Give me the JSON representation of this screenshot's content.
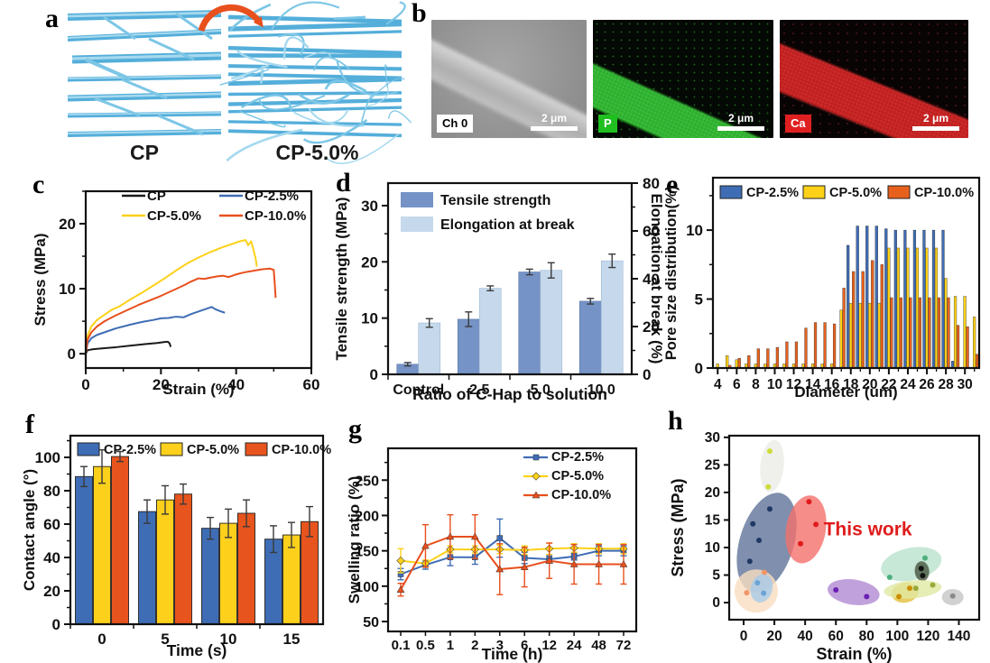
{
  "panels": {
    "a": {
      "label": "a",
      "left_caption": "CP",
      "right_caption": "CP-5.0%",
      "fiber_color": "#54aeda",
      "arrow_color": "#e8501e"
    },
    "b": {
      "label": "b",
      "images": [
        {
          "tag": "Ch 0",
          "scale_bar": "2 μm"
        },
        {
          "tag": "P",
          "scale_bar": "2 μm"
        },
        {
          "tag": "Ca",
          "scale_bar": "2 μm"
        }
      ]
    },
    "c": {
      "label": "c"
    },
    "d": {
      "label": "d"
    },
    "e": {
      "label": "e"
    },
    "f": {
      "label": "f"
    },
    "g": {
      "label": "g"
    },
    "h": {
      "label": "h"
    }
  },
  "chart_data": [
    {
      "panel": "c",
      "type": "line",
      "xlabel": "Strain (%)",
      "ylabel": "Stress (MPa)",
      "xlim": [
        0,
        60
      ],
      "ylim": [
        -2.2,
        25
      ],
      "xticks": [
        0,
        20,
        40,
        60
      ],
      "xminor": [
        10,
        30,
        50
      ],
      "yticks": [
        0,
        10,
        20
      ],
      "yminor": [
        5,
        15,
        25
      ],
      "legend_position": "top-inside-2col",
      "series": [
        {
          "name": "CP",
          "color": "#1a1a1a",
          "points": [
            [
              0,
              0
            ],
            [
              0.5,
              0.55
            ],
            [
              2,
              0.7
            ],
            [
              5,
              0.85
            ],
            [
              8,
              1.0
            ],
            [
              12,
              1.25
            ],
            [
              16,
              1.5
            ],
            [
              19,
              1.65
            ],
            [
              21,
              1.8
            ],
            [
              21.8,
              1.85
            ],
            [
              22.3,
              1.6
            ],
            [
              22.6,
              1.05
            ]
          ]
        },
        {
          "name": "CP-2.5%",
          "color": "#3f6db5",
          "points": [
            [
              0,
              0
            ],
            [
              0.5,
              1.6
            ],
            [
              1.5,
              2.4
            ],
            [
              3,
              2.9
            ],
            [
              5,
              3.3
            ],
            [
              8,
              3.9
            ],
            [
              12,
              4.5
            ],
            [
              15,
              4.9
            ],
            [
              18,
              5.2
            ],
            [
              20,
              5.45
            ],
            [
              22,
              5.5
            ],
            [
              24,
              5.7
            ],
            [
              26,
              5.6
            ],
            [
              28,
              6.1
            ],
            [
              30,
              6.5
            ],
            [
              32,
              6.9
            ],
            [
              33.5,
              7.2
            ],
            [
              34.3,
              6.9
            ],
            [
              35.5,
              6.6
            ],
            [
              37,
              6.3
            ]
          ]
        },
        {
          "name": "CP-5.0%",
          "color": "#fdd118",
          "points": [
            [
              0,
              0
            ],
            [
              0.5,
              2.8
            ],
            [
              1.5,
              4.2
            ],
            [
              3,
              5.2
            ],
            [
              5,
              6.0
            ],
            [
              7,
              6.8
            ],
            [
              9,
              7.3
            ],
            [
              12,
              8.4
            ],
            [
              15,
              9.4
            ],
            [
              18,
              10.5
            ],
            [
              21,
              11.6
            ],
            [
              24,
              12.8
            ],
            [
              27,
              13.9
            ],
            [
              30,
              14.8
            ],
            [
              33,
              15.6
            ],
            [
              36,
              16.3
            ],
            [
              39,
              16.9
            ],
            [
              41,
              17.3
            ],
            [
              42.5,
              17.5
            ],
            [
              43.2,
              16.7
            ],
            [
              44,
              17.3
            ],
            [
              44.6,
              16.0
            ],
            [
              45.2,
              14.6
            ],
            [
              45.5,
              13.4
            ]
          ]
        },
        {
          "name": "CP-10.0%",
          "color": "#e84f1d",
          "points": [
            [
              0,
              0
            ],
            [
              0.5,
              2.2
            ],
            [
              1.5,
              3.3
            ],
            [
              3,
              4.2
            ],
            [
              5,
              5.0
            ],
            [
              8,
              5.9
            ],
            [
              11,
              6.7
            ],
            [
              14,
              7.5
            ],
            [
              17,
              8.2
            ],
            [
              20,
              8.9
            ],
            [
              23,
              9.7
            ],
            [
              26,
              10.5
            ],
            [
              28,
              11.1
            ],
            [
              30,
              11.6
            ],
            [
              31.5,
              11.5
            ],
            [
              33,
              11.7
            ],
            [
              35,
              11.9
            ],
            [
              36.5,
              12.0
            ],
            [
              38,
              11.8
            ],
            [
              40,
              12.2
            ],
            [
              42,
              12.5
            ],
            [
              45,
              12.8
            ],
            [
              47,
              13.0
            ],
            [
              49,
              13.1
            ],
            [
              50,
              12.9
            ],
            [
              50.3,
              10.5
            ],
            [
              50.5,
              8.6
            ]
          ]
        }
      ]
    },
    {
      "panel": "d",
      "type": "bar-dual",
      "xlabel": "Ratio of C-Hap to solution",
      "categories": [
        "Control",
        "2.5",
        "5.0",
        "10.0"
      ],
      "left_axis": {
        "label": "Tensile strength (MPa)",
        "lim": [
          0,
          34
        ],
        "ticks": [
          0,
          10,
          20,
          30
        ],
        "minor": [
          5,
          15,
          25
        ]
      },
      "right_axis": {
        "label": "Elongation at break (%)",
        "lim": [
          0,
          80
        ],
        "ticks": [
          0,
          20,
          40,
          60,
          80
        ],
        "minor": [
          10,
          30,
          50,
          70
        ]
      },
      "series": [
        {
          "name": "Tensile strength",
          "axis": "left",
          "color": "#7593c6",
          "values": [
            1.8,
            9.8,
            18.2,
            13.0
          ],
          "errors": [
            0.3,
            1.3,
            0.5,
            0.5
          ]
        },
        {
          "name": "Elongation at break",
          "axis": "right",
          "color": "#c6d9ec",
          "values": [
            21.5,
            36,
            43.5,
            47.5
          ],
          "errors": [
            1.8,
            1.0,
            3.2,
            2.8
          ]
        }
      ]
    },
    {
      "panel": "e",
      "type": "histogram",
      "xlabel": "Diameter (um)",
      "ylabel": "Pore size distribution(%)",
      "diameter_start": 4,
      "bins": 28,
      "xtick_labels": [
        4,
        6,
        8,
        10,
        12,
        14,
        16,
        18,
        20,
        22,
        24,
        26,
        28,
        30
      ],
      "ylim": [
        0,
        13.8
      ],
      "yticks": [
        0,
        5,
        10
      ],
      "yminor": [
        2.5,
        7.5,
        12.5
      ],
      "series": [
        {
          "name": "CP-2.5%",
          "color": "#3f6db5",
          "values": [
            0,
            0,
            0,
            0,
            0,
            0,
            0,
            0,
            0,
            0,
            0,
            0,
            0,
            0,
            8.9,
            10.3,
            10.3,
            10.3,
            10.1,
            10.0,
            10.0,
            10.0,
            10.0,
            10.0,
            10.0,
            0.5,
            0,
            0
          ]
        },
        {
          "name": "CP-5.0%",
          "color": "#fdd118",
          "values": [
            0.3,
            0.9,
            0.6,
            0.3,
            0.3,
            0.3,
            0.3,
            0.3,
            0.3,
            0.3,
            0.3,
            0.3,
            0.3,
            4.2,
            4.7,
            4.7,
            4.7,
            4.7,
            8.7,
            8.7,
            8.7,
            8.7,
            8.7,
            8.7,
            6.5,
            5.2,
            5.2,
            3.7
          ]
        },
        {
          "name": "CP-10.0%",
          "color": "#e8611c",
          "values": [
            0,
            0.2,
            0.7,
            0.9,
            1.4,
            1.4,
            1.5,
            1.9,
            1.9,
            2.9,
            3.3,
            3.3,
            3.2,
            5.8,
            7.0,
            7.0,
            7.8,
            7.5,
            5.1,
            5.1,
            5.1,
            5.1,
            5.1,
            5.1,
            5.1,
            3.1,
            3.0,
            1.0
          ]
        }
      ]
    },
    {
      "panel": "f",
      "type": "grouped-bar",
      "xlabel": "Time (s)",
      "ylabel": "Contact angle (°)",
      "categories": [
        "0",
        "5",
        "10",
        "15"
      ],
      "ylim": [
        0,
        113
      ],
      "yticks": [
        0,
        20,
        40,
        60,
        80,
        100
      ],
      "yminor": [
        10,
        30,
        50,
        70,
        90,
        110
      ],
      "series": [
        {
          "name": "CP-2.5%",
          "color": "#3f6db5",
          "values": [
            88.5,
            67.5,
            57.5,
            51
          ],
          "errors": [
            6,
            7,
            6.5,
            8
          ]
        },
        {
          "name": "CP-5.0%",
          "color": "#fdd01c",
          "values": [
            94.5,
            74.5,
            60.5,
            53.5
          ],
          "errors": [
            10,
            8.5,
            8.5,
            7.5
          ]
        },
        {
          "name": "CP-10.0%",
          "color": "#e8541d",
          "values": [
            100.5,
            78,
            66.5,
            61.5
          ],
          "errors": [
            3,
            6,
            8,
            9
          ]
        }
      ]
    },
    {
      "panel": "g",
      "type": "line-cat",
      "xlabel": "Time (h)",
      "ylabel": "Swelling ratio (%)",
      "categories": [
        "0.1",
        "0.5",
        "1",
        "2",
        "3",
        "6",
        "12",
        "24",
        "48",
        "72"
      ],
      "ylim": [
        36,
        295
      ],
      "yticks": [
        50,
        100,
        150,
        200,
        250
      ],
      "yminor": [
        75,
        125,
        175,
        225,
        275
      ],
      "series": [
        {
          "name": "CP-2.5%",
          "color": "#3f6db5",
          "marker": "square",
          "values": [
            117,
            130,
            141,
            141,
            168,
            140,
            138,
            142,
            150,
            150
          ],
          "errors": [
            8,
            6,
            12,
            10,
            27,
            8,
            5,
            5,
            7,
            7
          ]
        },
        {
          "name": "CP-5.0%",
          "color": "#fdd118",
          "marker": "diamond",
          "values": [
            136,
            132,
            152,
            152,
            152,
            151,
            153,
            154,
            153,
            153
          ],
          "errors": [
            17,
            5,
            5,
            5,
            6,
            6,
            8,
            6,
            7,
            7
          ]
        },
        {
          "name": "CP-10.0%",
          "color": "#e84f1d",
          "marker": "triangle",
          "values": [
            95,
            157,
            170,
            170,
            124,
            127,
            136,
            131,
            131,
            131
          ],
          "errors": [
            9,
            30,
            31,
            31,
            36,
            28,
            25,
            28,
            28,
            28
          ]
        }
      ]
    },
    {
      "panel": "h",
      "type": "scatter-ellipse",
      "xlabel": "Strain (%)",
      "ylabel": "Stress (MPa)",
      "xlim": [
        -9.4,
        153.2
      ],
      "ylim": [
        -3.1,
        30.3
      ],
      "xticks": [
        0,
        20,
        40,
        60,
        80,
        100,
        120,
        140
      ],
      "yticks": [
        0,
        5,
        10,
        15,
        20,
        25,
        30
      ],
      "annotation": {
        "text": "This work",
        "color": "#e01b1b",
        "x": 52,
        "y": 12.2
      },
      "groups": [
        {
          "color": "#ebebe7",
          "cx": 18.5,
          "cy": 24.8,
          "rx": 13,
          "ry": 29,
          "rot": 6,
          "point_color": "#cddc39",
          "points": [
            [
              17,
              27.5
            ],
            [
              16,
              21
            ]
          ]
        },
        {
          "color": "#5f7398",
          "cx": 15,
          "cy": 10.9,
          "rx": 30,
          "ry": 57,
          "rot": 17,
          "point_color": "#1f3864",
          "points": [
            [
              17,
              17
            ],
            [
              6,
              14.3
            ],
            [
              10,
              11.3
            ],
            [
              4,
              7.5
            ]
          ]
        },
        {
          "color": "#f4706c",
          "cx": 40.5,
          "cy": 13.3,
          "rx": 22,
          "ry": 38,
          "rot": 10,
          "point_color": "#e01b1b",
          "points": [
            [
              42.5,
              18.3
            ],
            [
              47,
              14.2
            ],
            [
              37,
              10.7
            ]
          ]
        },
        {
          "color": "#f9ddc1",
          "cx": 8.2,
          "cy": 2.1,
          "rx": 24,
          "ry": 24,
          "rot": 0,
          "point_color": "#f0956a",
          "points": [
            [
              13.5,
              5.5
            ],
            [
              2,
              1.8
            ]
          ]
        },
        {
          "color": "#a9cbe8",
          "cx": 11.7,
          "cy": 2.6,
          "rx": 12,
          "ry": 16,
          "rot": 15,
          "point_color": "#6ba3d6",
          "points": [
            [
              9,
              3.6
            ],
            [
              13,
              1.7
            ]
          ]
        },
        {
          "color": "#b28ad2",
          "cx": 71.5,
          "cy": 1.9,
          "rx": 29,
          "ry": 14,
          "rot": 8,
          "point_color": "#6a1fb5",
          "points": [
            [
              60,
              2.3
            ],
            [
              80,
              1.1
            ]
          ]
        },
        {
          "color": "#b9e2cc",
          "cx": 109,
          "cy": 7.0,
          "rx": 34,
          "ry": 18,
          "rot": -12,
          "point_color": "#4caf7d",
          "points": [
            [
              95,
              4.6
            ],
            [
              118,
              8.1
            ]
          ]
        },
        {
          "color": "#46543e",
          "cx": 116,
          "cy": 5.7,
          "rx": 8,
          "ry": 11,
          "rot": -5,
          "point_color": "#111111",
          "points": [
            [
              115.5,
              6.2
            ],
            [
              116.5,
              4.9
            ]
          ]
        },
        {
          "color": "#e3bf3a",
          "cx": 105,
          "cy": 1.8,
          "rx": 15,
          "ry": 11,
          "rot": -10,
          "point_color": "#c98f00",
          "points": [
            [
              101,
              1.1
            ],
            [
              108,
              2.6
            ]
          ]
        },
        {
          "color": "#e0e9a2",
          "cx": 110,
          "cy": 2.4,
          "rx": 32,
          "ry": 10,
          "rot": -5,
          "point_color": "#9aa83a",
          "points": [
            [
              112,
              2.6
            ],
            [
              123,
              3.2
            ]
          ]
        },
        {
          "color": "#c6c6c6",
          "cx": 136,
          "cy": 1.0,
          "rx": 12,
          "ry": 9,
          "rot": 0,
          "point_color": "#8a8a8a",
          "points": [
            [
              136,
              1.2
            ]
          ]
        }
      ]
    }
  ]
}
